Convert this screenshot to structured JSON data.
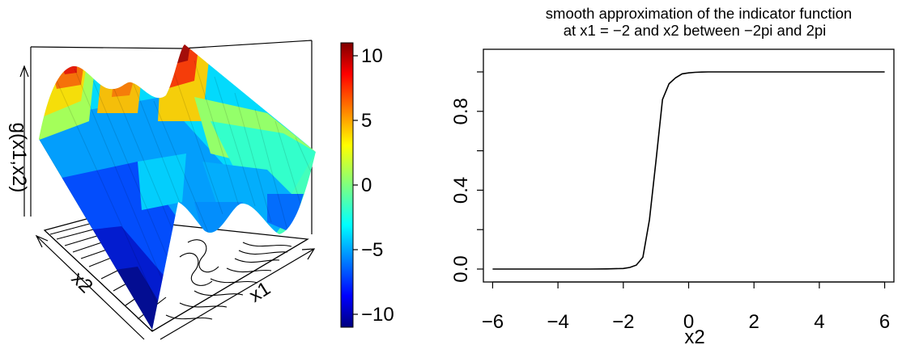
{
  "chart_data": [
    {
      "type": "surface3d",
      "xlabel": "x1",
      "ylabel": "x2",
      "zlabel": "g(x1,x2)",
      "colorbar": {
        "palette": "jet",
        "range": [
          -11,
          11
        ],
        "ticks": [
          {
            "value": 10,
            "label": "10"
          },
          {
            "value": 5,
            "label": "5"
          },
          {
            "value": 0,
            "label": "0"
          },
          {
            "value": -5,
            "label": "−5"
          },
          {
            "value": -10,
            "label": "−10"
          }
        ]
      },
      "contours_on_base": true
    },
    {
      "type": "line",
      "title_line1": "smooth approximation of the indicator function",
      "title_line2": "at x1 = −2 and x2 between −2pi and 2pi",
      "xlabel": "x2",
      "ylabel": "",
      "xlim": [
        -6.283,
        6.283
      ],
      "ylim": [
        0,
        1
      ],
      "x_ticks": [
        {
          "value": -6,
          "label": "−6"
        },
        {
          "value": -4,
          "label": "−4"
        },
        {
          "value": -2,
          "label": "−2"
        },
        {
          "value": 0,
          "label": "0"
        },
        {
          "value": 2,
          "label": "2"
        },
        {
          "value": 4,
          "label": "4"
        },
        {
          "value": 6,
          "label": "6"
        }
      ],
      "y_ticks": [
        {
          "value": 0.0,
          "label": "0.0"
        },
        {
          "value": 0.2,
          "label": ""
        },
        {
          "value": 0.4,
          "label": "0.4"
        },
        {
          "value": 0.6,
          "label": ""
        },
        {
          "value": 0.8,
          "label": "0.8"
        },
        {
          "value": 1.0,
          "label": ""
        }
      ],
      "x": [
        -6.0,
        -5.0,
        -4.0,
        -3.0,
        -2.5,
        -2.0,
        -1.8,
        -1.6,
        -1.4,
        -1.2,
        -1.0,
        -0.8,
        -0.6,
        -0.4,
        -0.2,
        0.0,
        0.2,
        0.4,
        0.6,
        1.0,
        2.0,
        4.0,
        6.0
      ],
      "y": [
        0.0,
        0.0,
        0.0,
        0.0,
        0.001,
        0.003,
        0.008,
        0.02,
        0.06,
        0.25,
        0.55,
        0.86,
        0.94,
        0.97,
        0.99,
        0.995,
        0.998,
        0.999,
        1.0,
        1.0,
        1.0,
        1.0,
        1.0
      ],
      "grid": false
    }
  ]
}
